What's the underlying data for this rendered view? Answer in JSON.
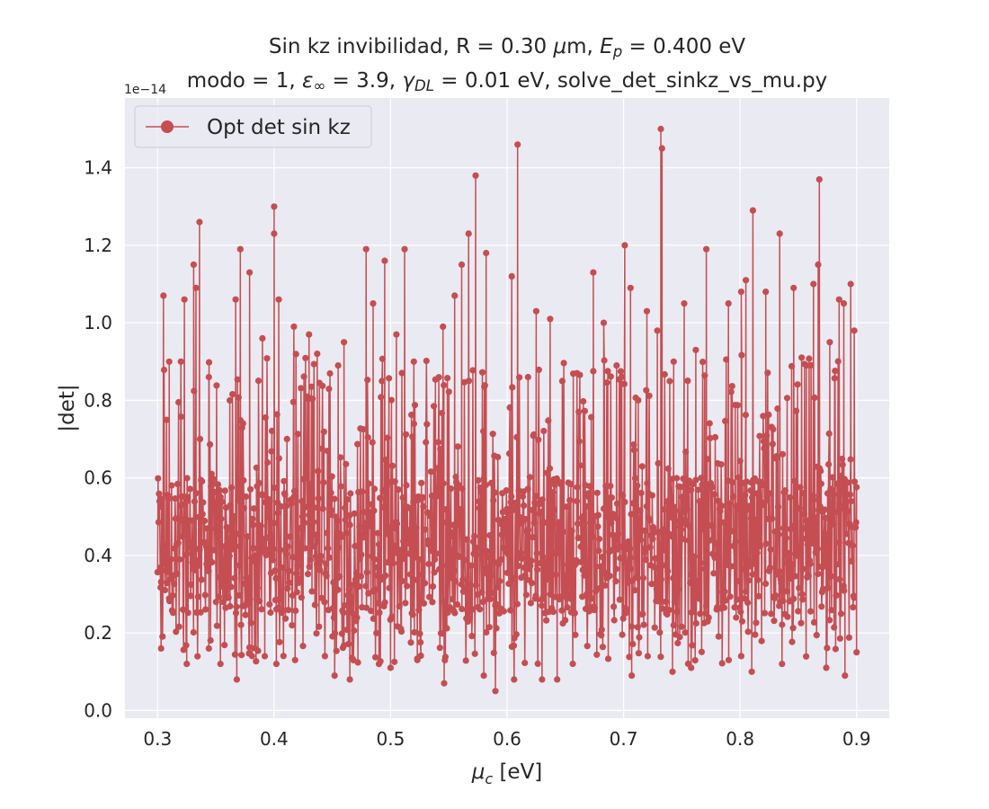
{
  "chart_data": {
    "type": "line",
    "title_line1": "Sin kz invibilidad, R = 0.30 μm, E_p = 0.400 eV",
    "title_line2": "modo = 1, ε_∞ = 3.9, γ_DL = 0.01 eV, solve_det_sinkz_vs_mu.py",
    "xlabel": "μ_c [eV]",
    "ylabel": "|det|",
    "y_offset_label": "1e−14",
    "xlim": [
      0.272,
      0.928
    ],
    "ylim": [
      -0.02,
      1.58
    ],
    "y_scale_factor": 1e-14,
    "x_ticks": [
      "0.3",
      "0.4",
      "0.5",
      "0.6",
      "0.7",
      "0.8",
      "0.9"
    ],
    "y_ticks": [
      "0.0",
      "0.2",
      "0.4",
      "0.6",
      "0.8",
      "1.0",
      "1.2",
      "1.4"
    ],
    "grid": true,
    "legend_position": "upper left",
    "series": [
      {
        "name": "Opt det sin kz",
        "color": "#c44e52",
        "marker": "o",
        "x_range": [
          0.3,
          0.9
        ],
        "baseline_band": [
          0.25,
          0.6
        ],
        "peaks": [
          {
            "x": 0.305,
            "y": 1.07
          },
          {
            "x": 0.31,
            "y": 0.9
          },
          {
            "x": 0.32,
            "y": 0.9
          },
          {
            "x": 0.323,
            "y": 1.06
          },
          {
            "x": 0.331,
            "y": 1.15
          },
          {
            "x": 0.333,
            "y": 1.09
          },
          {
            "x": 0.336,
            "y": 1.26
          },
          {
            "x": 0.344,
            "y": 0.86
          },
          {
            "x": 0.362,
            "y": 0.8
          },
          {
            "x": 0.367,
            "y": 1.06
          },
          {
            "x": 0.371,
            "y": 1.19
          },
          {
            "x": 0.379,
            "y": 1.13
          },
          {
            "x": 0.39,
            "y": 0.96
          },
          {
            "x": 0.4,
            "y": 1.3
          },
          {
            "x": 0.4,
            "y": 1.23
          },
          {
            "x": 0.404,
            "y": 1.06
          },
          {
            "x": 0.417,
            "y": 0.99
          },
          {
            "x": 0.43,
            "y": 0.97
          },
          {
            "x": 0.437,
            "y": 0.92
          },
          {
            "x": 0.455,
            "y": 0.89
          },
          {
            "x": 0.46,
            "y": 0.95
          },
          {
            "x": 0.479,
            "y": 1.19
          },
          {
            "x": 0.485,
            "y": 1.05
          },
          {
            "x": 0.495,
            "y": 1.16
          },
          {
            "x": 0.505,
            "y": 0.97
          },
          {
            "x": 0.512,
            "y": 1.19
          },
          {
            "x": 0.52,
            "y": 0.9
          },
          {
            "x": 0.545,
            "y": 0.99
          },
          {
            "x": 0.555,
            "y": 1.07
          },
          {
            "x": 0.561,
            "y": 1.15
          },
          {
            "x": 0.567,
            "y": 1.23
          },
          {
            "x": 0.573,
            "y": 1.38
          },
          {
            "x": 0.582,
            "y": 1.18
          },
          {
            "x": 0.604,
            "y": 1.12
          },
          {
            "x": 0.609,
            "y": 1.46
          },
          {
            "x": 0.618,
            "y": 0.86
          },
          {
            "x": 0.625,
            "y": 1.03
          },
          {
            "x": 0.637,
            "y": 1.01
          },
          {
            "x": 0.66,
            "y": 0.87
          },
          {
            "x": 0.674,
            "y": 1.13
          },
          {
            "x": 0.683,
            "y": 1.0
          },
          {
            "x": 0.694,
            "y": 0.89
          },
          {
            "x": 0.701,
            "y": 1.2
          },
          {
            "x": 0.706,
            "y": 1.09
          },
          {
            "x": 0.72,
            "y": 1.03
          },
          {
            "x": 0.729,
            "y": 0.98
          },
          {
            "x": 0.732,
            "y": 1.5
          },
          {
            "x": 0.733,
            "y": 1.45
          },
          {
            "x": 0.743,
            "y": 0.9
          },
          {
            "x": 0.752,
            "y": 1.05
          },
          {
            "x": 0.762,
            "y": 0.93
          },
          {
            "x": 0.771,
            "y": 1.19
          },
          {
            "x": 0.79,
            "y": 1.05
          },
          {
            "x": 0.801,
            "y": 1.08
          },
          {
            "x": 0.805,
            "y": 1.11
          },
          {
            "x": 0.811,
            "y": 1.29
          },
          {
            "x": 0.822,
            "y": 1.08
          },
          {
            "x": 0.834,
            "y": 1.23
          },
          {
            "x": 0.846,
            "y": 1.09
          },
          {
            "x": 0.857,
            "y": 0.89
          },
          {
            "x": 0.863,
            "y": 1.1
          },
          {
            "x": 0.867,
            "y": 1.15
          },
          {
            "x": 0.868,
            "y": 1.37
          },
          {
            "x": 0.877,
            "y": 0.95
          },
          {
            "x": 0.885,
            "y": 1.06
          },
          {
            "x": 0.889,
            "y": 1.05
          },
          {
            "x": 0.895,
            "y": 1.1
          },
          {
            "x": 0.898,
            "y": 0.98
          }
        ],
        "dips": [
          {
            "x": 0.303,
            "y": 0.16
          },
          {
            "x": 0.325,
            "y": 0.12
          },
          {
            "x": 0.344,
            "y": 0.16
          },
          {
            "x": 0.354,
            "y": 0.12
          },
          {
            "x": 0.368,
            "y": 0.08
          },
          {
            "x": 0.392,
            "y": 0.14
          },
          {
            "x": 0.402,
            "y": 0.12
          },
          {
            "x": 0.418,
            "y": 0.13
          },
          {
            "x": 0.452,
            "y": 0.09
          },
          {
            "x": 0.465,
            "y": 0.08
          },
          {
            "x": 0.49,
            "y": 0.12
          },
          {
            "x": 0.5,
            "y": 0.11
          },
          {
            "x": 0.523,
            "y": 0.13
          },
          {
            "x": 0.546,
            "y": 0.07
          },
          {
            "x": 0.58,
            "y": 0.09
          },
          {
            "x": 0.59,
            "y": 0.05
          },
          {
            "x": 0.606,
            "y": 0.08
          },
          {
            "x": 0.63,
            "y": 0.08
          },
          {
            "x": 0.643,
            "y": 0.08
          },
          {
            "x": 0.707,
            "y": 0.09
          },
          {
            "x": 0.742,
            "y": 0.1
          },
          {
            "x": 0.758,
            "y": 0.11
          },
          {
            "x": 0.81,
            "y": 0.1
          },
          {
            "x": 0.836,
            "y": 0.12
          },
          {
            "x": 0.874,
            "y": 0.11
          },
          {
            "x": 0.89,
            "y": 0.09
          },
          {
            "x": 0.9,
            "y": 0.15
          }
        ]
      }
    ]
  }
}
